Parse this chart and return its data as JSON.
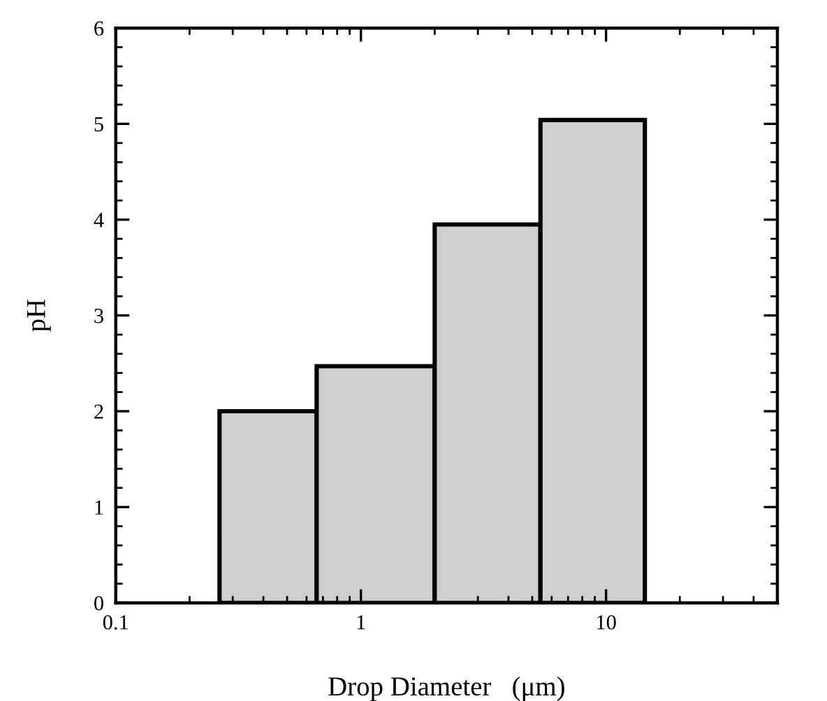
{
  "chart_data": {
    "type": "histogram",
    "xlabel": "Drop Diameter   (μm)",
    "ylabel": "pH",
    "bins": [
      0.265,
      0.66,
      2.0,
      5.4,
      14.4
    ],
    "values": [
      2.0,
      2.47,
      3.95,
      5.04
    ],
    "color": "#cfcfcf",
    "log": "x",
    "xlim": [
      0.1,
      50
    ],
    "xticks": [
      0.1,
      1,
      10
    ],
    "ylim": [
      0,
      6
    ],
    "yticks": [
      0,
      1,
      2,
      3,
      4,
      5,
      6
    ],
    "grid": false,
    "legend": false
  }
}
